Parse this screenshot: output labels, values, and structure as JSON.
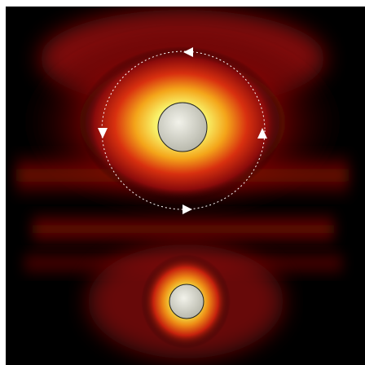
{
  "figure": {
    "kind": "field-intensity-heatmap",
    "colormap": [
      "#000000",
      "#3a0000",
      "#8a0a0a",
      "#d62a10",
      "#f5a31c",
      "#f7f57a",
      "#ffffff"
    ],
    "background_color": "#000000",
    "frame_color": "#ffffff",
    "particles": [
      {
        "name": "upper-sphere",
        "fill": "#d4d4c8",
        "stroke": "#222222"
      },
      {
        "name": "lower-sphere",
        "fill": "#cfcfc4",
        "stroke": "#222222"
      }
    ],
    "circulation": {
      "style": "dashed",
      "color": "#ffffff",
      "arrows": [
        "left-arrow",
        "right-arrow",
        "down-arrow",
        "up-arrow"
      ]
    }
  }
}
